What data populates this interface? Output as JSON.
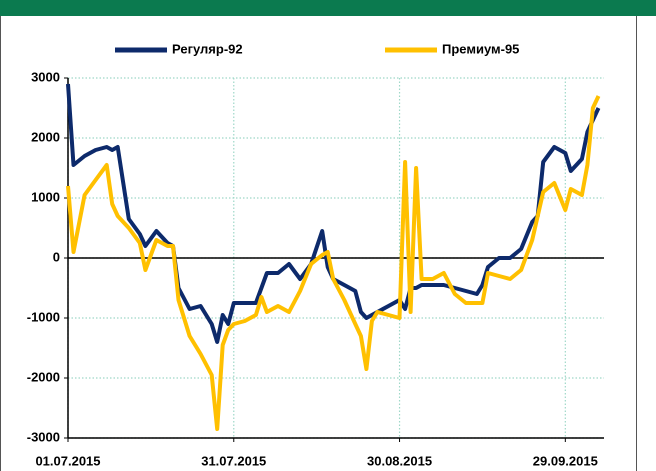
{
  "chart_data": {
    "type": "line",
    "x": [
      "2015-07-01",
      "2015-07-02",
      "2015-07-04",
      "2015-07-06",
      "2015-07-08",
      "2015-07-09",
      "2015-07-10",
      "2015-07-12",
      "2015-07-14",
      "2015-07-15",
      "2015-07-17",
      "2015-07-19",
      "2015-07-20",
      "2015-07-21",
      "2015-07-23",
      "2015-07-25",
      "2015-07-27",
      "2015-07-28",
      "2015-07-29",
      "2015-07-30",
      "2015-07-31",
      "2015-08-02",
      "2015-08-04",
      "2015-08-05",
      "2015-08-06",
      "2015-08-08",
      "2015-08-10",
      "2015-08-12",
      "2015-08-14",
      "2015-08-16",
      "2015-08-17",
      "2015-08-18",
      "2015-08-20",
      "2015-08-22",
      "2015-08-23",
      "2015-08-24",
      "2015-08-25",
      "2015-08-26",
      "2015-08-28",
      "2015-08-30",
      "2015-08-31",
      "2015-09-01",
      "2015-09-02",
      "2015-09-03",
      "2015-09-05",
      "2015-09-07",
      "2015-09-09",
      "2015-09-11",
      "2015-09-13",
      "2015-09-14",
      "2015-09-15",
      "2015-09-17",
      "2015-09-19",
      "2015-09-21",
      "2015-09-23",
      "2015-09-24",
      "2015-09-25",
      "2015-09-27",
      "2015-09-29",
      "2015-09-30",
      "2015-10-02",
      "2015-10-03",
      "2015-10-04",
      "2015-10-05"
    ],
    "series": [
      {
        "name": "Регуляр-92",
        "color": "#0d2a6b",
        "values": [
          2900,
          1550,
          1700,
          1800,
          1850,
          1800,
          1850,
          650,
          400,
          200,
          450,
          250,
          200,
          -500,
          -850,
          -800,
          -1100,
          -1400,
          -950,
          -1100,
          -750,
          -750,
          -750,
          -500,
          -250,
          -250,
          -100,
          -350,
          -100,
          450,
          -150,
          -350,
          -450,
          -550,
          -900,
          -1000,
          -950,
          -900,
          -800,
          -700,
          -850,
          -500,
          -500,
          -450,
          -450,
          -450,
          -500,
          -550,
          -600,
          -450,
          -150,
          0,
          0,
          150,
          600,
          700,
          1600,
          1850,
          1750,
          1450,
          1650,
          2100,
          2300,
          2500
        ]
      },
      {
        "name": "Премиум-95",
        "color": "#ffc000",
        "values": [
          1200,
          100,
          1050,
          1300,
          1550,
          900,
          700,
          500,
          250,
          -200,
          300,
          200,
          200,
          -700,
          -1300,
          -1600,
          -1950,
          -2850,
          -1450,
          -1200,
          -1100,
          -1050,
          -950,
          -650,
          -900,
          -800,
          -900,
          -550,
          -100,
          50,
          100,
          -350,
          -700,
          -1100,
          -1300,
          -1850,
          -1050,
          -900,
          -950,
          -1000,
          1600,
          -900,
          1500,
          -350,
          -350,
          -250,
          -600,
          -750,
          -750,
          -750,
          -250,
          -300,
          -350,
          -200,
          300,
          700,
          1100,
          1250,
          800,
          1150,
          1050,
          1550,
          2500,
          2700
        ]
      }
    ],
    "xlim": [
      "2015-07-01",
      "2015-10-06"
    ],
    "xticks": [
      {
        "value": "2015-07-01",
        "label": "01.07.2015"
      },
      {
        "value": "2015-07-31",
        "label": "31.07.2015"
      },
      {
        "value": "2015-08-30",
        "label": "30.08.2015"
      },
      {
        "value": "2015-09-29",
        "label": "29.09.2015"
      }
    ],
    "ylim": [
      -3000,
      3000
    ],
    "yticks": [
      -3000,
      -2000,
      -1000,
      0,
      1000,
      2000,
      3000
    ],
    "grid": true,
    "legend": "top"
  }
}
